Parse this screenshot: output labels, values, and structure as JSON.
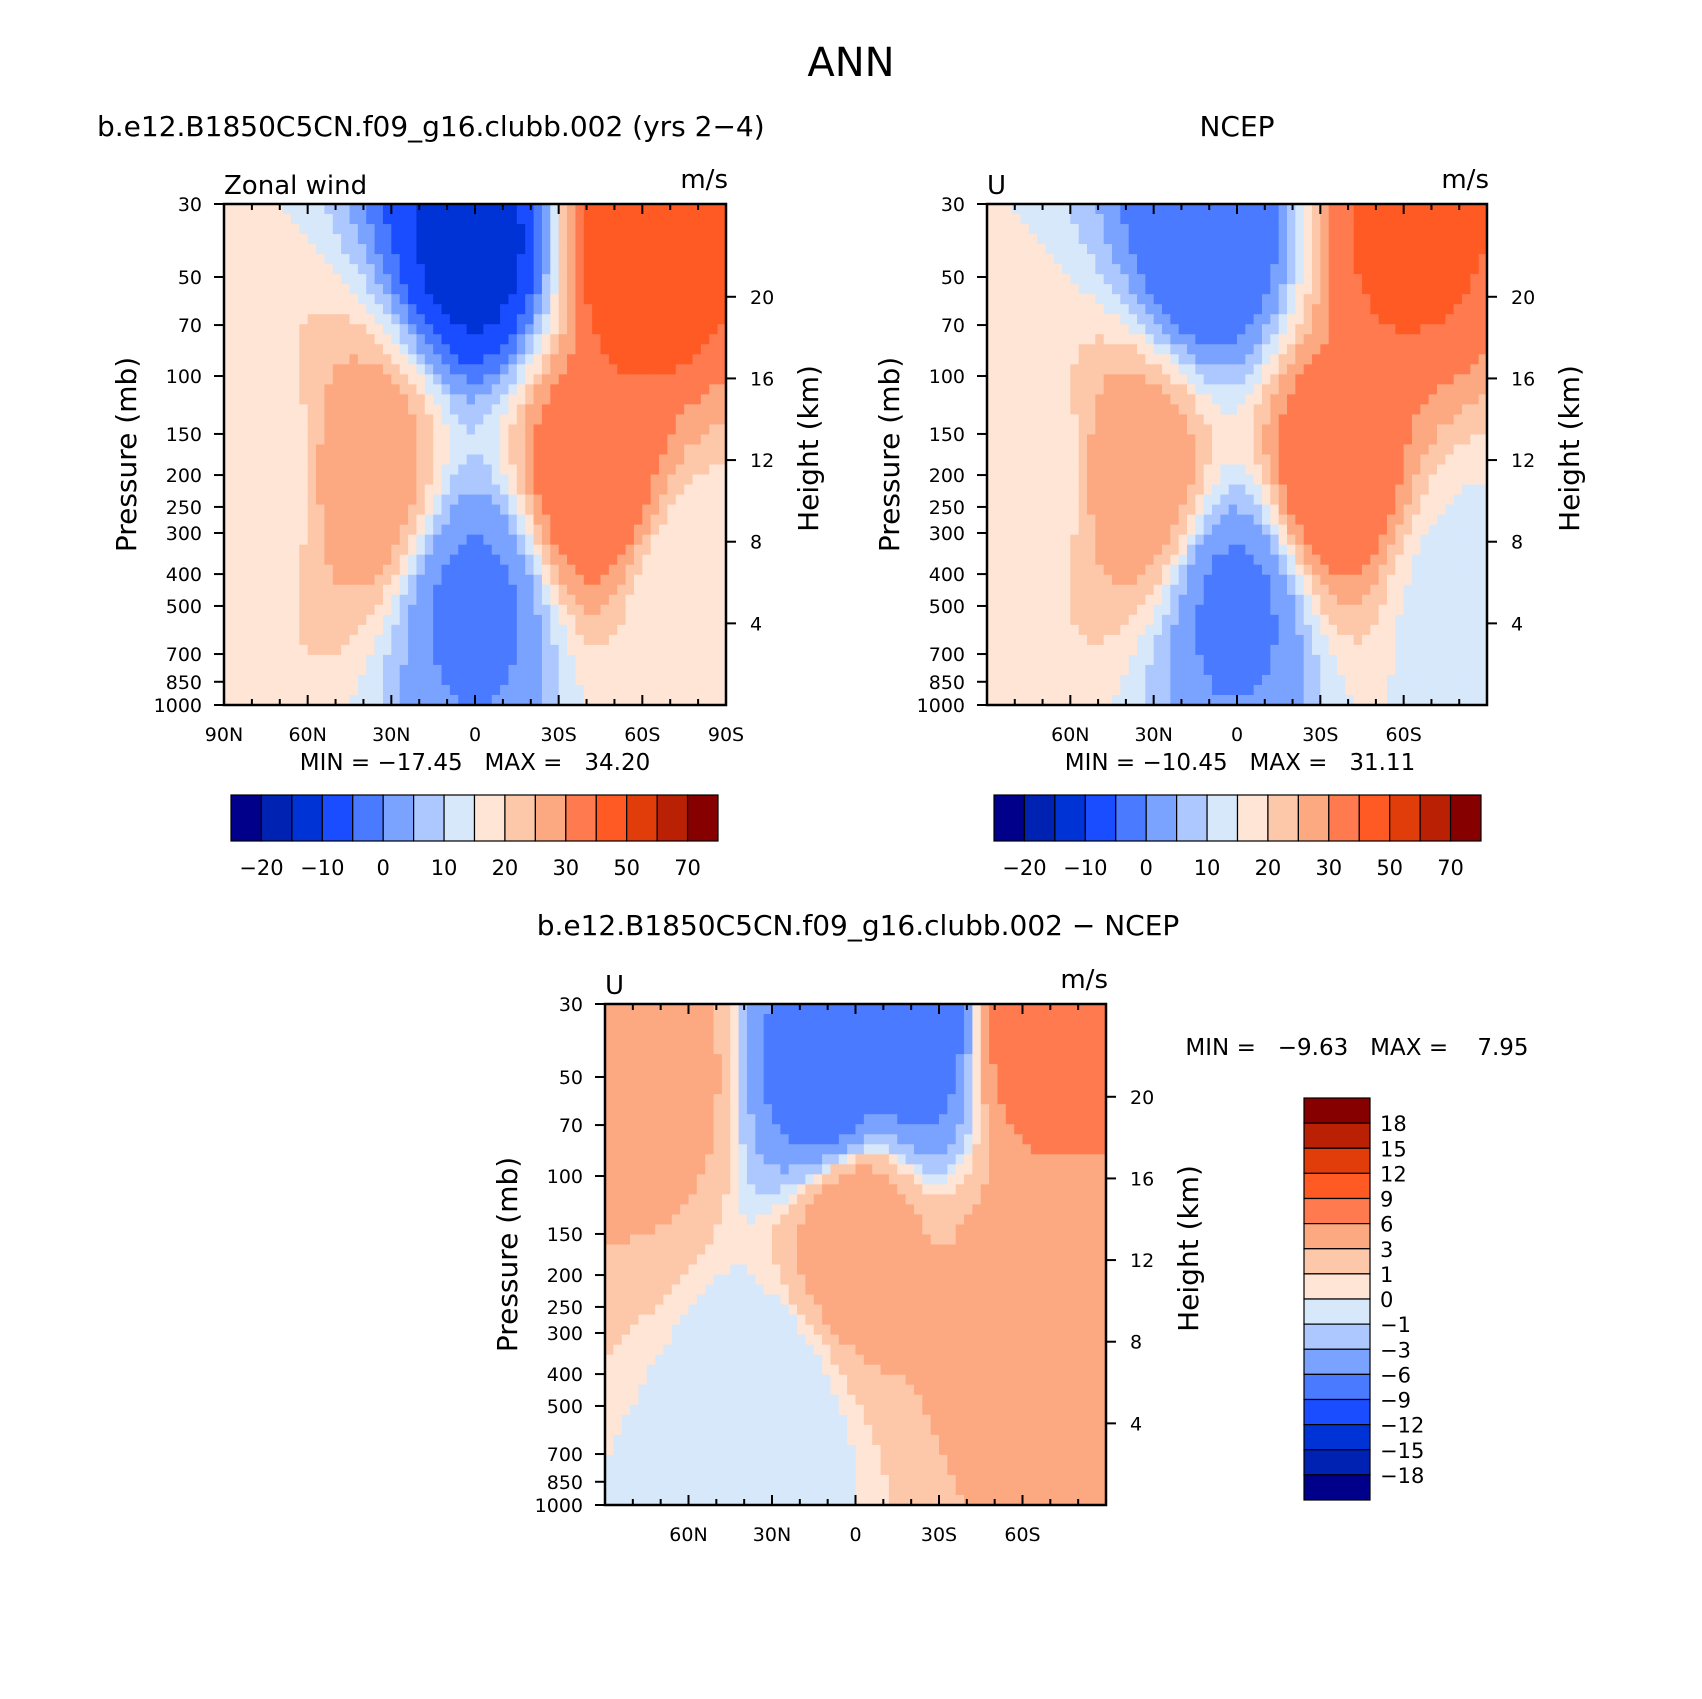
{
  "page_title": "ANN",
  "chart_data": [
    {
      "type": "heatmap",
      "title": "b.e12.B1850C5CN.f09_g16.clubb.002 (yrs 2−4)",
      "left_label": "Zonal wind",
      "units": "m/s",
      "ylabel": "Pressure (mb)",
      "ylabel2": "Height (km)",
      "stats": "MIN = −17.45   MAX =   34.20",
      "x_ticks": [
        "90N",
        "60N",
        "30N",
        "0",
        "30S",
        "60S",
        "90S"
      ],
      "y_ticks": [
        "30",
        "50",
        "70",
        "100",
        "150",
        "200",
        "250",
        "300",
        "400",
        "500",
        "700",
        "850",
        "1000"
      ],
      "y2_ticks": [
        "20",
        "16",
        "12",
        "8",
        "4"
      ],
      "colorbar_labels": [
        "−20",
        "−10",
        "0",
        "10",
        "20",
        "30",
        "50",
        "70"
      ],
      "series": [
        {
          "lat": 40,
          "p": 200,
          "value": 24
        },
        {
          "lat": -42,
          "p": 200,
          "value": 30
        },
        {
          "lat": -58,
          "p": 40,
          "value": 34
        },
        {
          "lat": 0,
          "p": 40,
          "value": -17
        },
        {
          "lat": 0,
          "p": 500,
          "value": -6
        },
        {
          "lat": 75,
          "p": 200,
          "value": 12
        },
        {
          "lat": -78,
          "p": 500,
          "value": 10
        }
      ]
    },
    {
      "type": "heatmap",
      "title": "NCEP",
      "left_label": "U",
      "units": "m/s",
      "ylabel": "Pressure (mb)",
      "ylabel2": "Height (km)",
      "stats": "MIN = −10.45   MAX =   31.11",
      "x_ticks": [
        "60N",
        "30N",
        "0",
        "30S",
        "60S"
      ],
      "y_ticks": [
        "30",
        "50",
        "70",
        "100",
        "150",
        "200",
        "250",
        "300",
        "400",
        "500",
        "700",
        "850",
        "1000"
      ],
      "y2_ticks": [
        "20",
        "16",
        "12",
        "8",
        "4"
      ],
      "colorbar_labels": [
        "−20",
        "−10",
        "0",
        "10",
        "20",
        "30",
        "50",
        "70"
      ],
      "series": [
        {
          "lat": 35,
          "p": 200,
          "value": 24
        },
        {
          "lat": -35,
          "p": 200,
          "value": 30
        },
        {
          "lat": -60,
          "p": 35,
          "value": 31
        },
        {
          "lat": 10,
          "p": 40,
          "value": -10
        },
        {
          "lat": 0,
          "p": 500,
          "value": -6
        },
        {
          "lat": 75,
          "p": 200,
          "value": 12
        },
        {
          "lat": -80,
          "p": 500,
          "value": 8
        }
      ]
    },
    {
      "type": "heatmap",
      "title": "b.e12.B1850C5CN.f09_g16.clubb.002 − NCEP",
      "left_label": "U",
      "units": "m/s",
      "ylabel": "Pressure (mb)",
      "ylabel2": "Height (km)",
      "stats": "MIN =   −9.63   MAX =    7.95",
      "x_ticks": [
        "60N",
        "30N",
        "0",
        "30S",
        "60S"
      ],
      "y_ticks": [
        "30",
        "50",
        "70",
        "100",
        "150",
        "200",
        "250",
        "300",
        "400",
        "500",
        "700",
        "850",
        "1000"
      ],
      "y2_ticks": [
        "20",
        "16",
        "12",
        "8",
        "4"
      ],
      "colorbar_labels": [
        "18",
        "15",
        "12",
        "9",
        "6",
        "3",
        "1",
        "0",
        "−1",
        "−3",
        "−6",
        "−9",
        "−12",
        "−15",
        "−18"
      ],
      "series": [
        {
          "lat": 0,
          "p": 150,
          "value": 5
        },
        {
          "lat": -65,
          "p": 35,
          "value": 8
        },
        {
          "lat": 70,
          "p": 50,
          "value": 4
        },
        {
          "lat": 10,
          "p": 50,
          "value": -8
        },
        {
          "lat": -20,
          "p": 35,
          "value": -9
        },
        {
          "lat": -58,
          "p": 250,
          "value": 4
        },
        {
          "lat": 30,
          "p": 500,
          "value": -1
        }
      ]
    }
  ],
  "palette": {
    "contour_colors": [
      "#00008b",
      "#0022b3",
      "#0033d6",
      "#1a4dff",
      "#4a7aff",
      "#7aa3ff",
      "#adc8ff",
      "#d7e8fb",
      "#fee5d5",
      "#fdc7a9",
      "#fca982",
      "#ff7b4f",
      "#ff5a24",
      "#e13d0b",
      "#b92004",
      "#870000"
    ]
  }
}
